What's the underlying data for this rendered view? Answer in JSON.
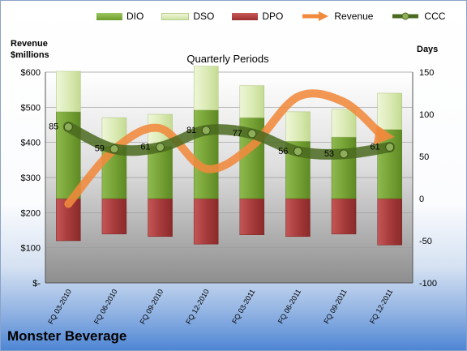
{
  "legend": {
    "dio": "DIO",
    "dso": "DSO",
    "dpo": "DPO",
    "revenue": "Revenue",
    "ccc": "CCC"
  },
  "left_axis_title": [
    "Revenue",
    "$millions"
  ],
  "right_axis_title": "Days",
  "plot_title": "Quarterly Periods",
  "company": "Monster Beverage",
  "colors": {
    "dio": "#7fae3d",
    "dso": "#dcebb8",
    "dpo": "#b04444",
    "revenue": "#f08a3c",
    "ccc": "#4a6a1e"
  },
  "chart_data": {
    "type": "bar",
    "categories": [
      "FQ 03-2010",
      "FQ 06-2010",
      "FQ 09-2010",
      "FQ 12-2010",
      "FQ 03-2011",
      "FQ 06-2011",
      "FQ 09-2011",
      "FQ 12-2011"
    ],
    "left_axis": {
      "ylim": [
        0,
        600
      ],
      "ticks": [
        "$-",
        "$100",
        "$200",
        "$300",
        "$400",
        "$500",
        "$600"
      ]
    },
    "right_axis": {
      "ylim": [
        -100,
        150
      ],
      "ticks": [
        "-100",
        "-50",
        "0",
        "50",
        "100",
        "150"
      ]
    },
    "series": [
      {
        "name": "DIO",
        "axis": "right",
        "values": [
          103,
          62,
          62,
          105,
          96,
          68,
          73,
          82
        ]
      },
      {
        "name": "DSO",
        "axis": "right",
        "values": [
          48,
          34,
          38,
          52,
          38,
          35,
          33,
          43
        ]
      },
      {
        "name": "DPO",
        "axis": "right",
        "values": [
          -50,
          -42,
          -45,
          -54,
          -43,
          -45,
          -42,
          -55
        ]
      },
      {
        "name": "Revenue",
        "axis": "left",
        "values": [
          225,
          380,
          440,
          325,
          390,
          530,
          515,
          420
        ]
      },
      {
        "name": "CCC",
        "axis": "right",
        "values": [
          85,
          59,
          61,
          81,
          77,
          56,
          53,
          61
        ]
      }
    ],
    "data_labels": [
      "85",
      "59",
      "61",
      "81",
      "77",
      "56",
      "53",
      "61"
    ]
  }
}
